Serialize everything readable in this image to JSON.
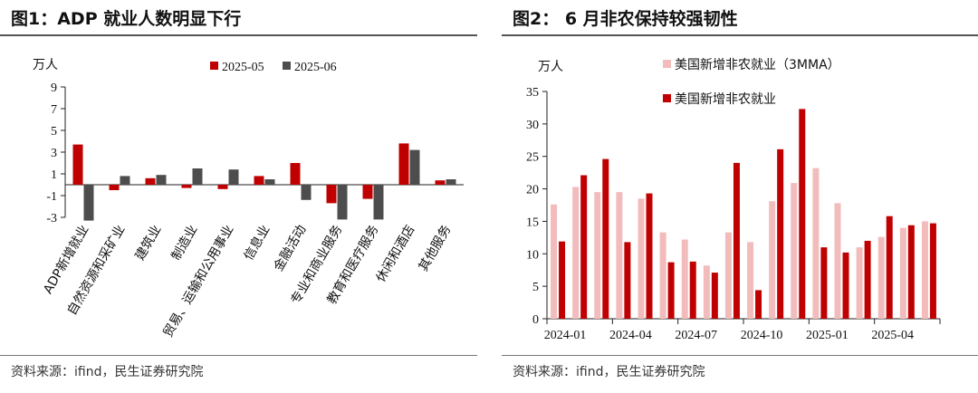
{
  "charts": [
    {
      "title": "图1：ADP 就业人数明显下行",
      "source": "资料来源：ifind，民生证券研究院",
      "unit": "万人"
    },
    {
      "title": "图2：  6 月非农保持较强韧性",
      "source": "资料来源：ifind，民生证券研究院",
      "unit": "万人"
    }
  ],
  "chart_data": [
    {
      "type": "bar",
      "title": "图1：ADP 就业人数明显下行",
      "ylabel": "万人",
      "ylim": [
        -3,
        9
      ],
      "yticks": [
        -3,
        -1,
        1,
        3,
        5,
        7,
        9
      ],
      "grid": false,
      "legend": "top",
      "categories": [
        "ADP新增就业",
        "自然资源和采矿业",
        "建筑业",
        "制造业",
        "贸易、运输和公用事业",
        "信息业",
        "金融活动",
        "专业和商业服务",
        "教育和医疗服务",
        "休闲和酒店",
        "其他服务"
      ],
      "series": [
        {
          "name": "2025-05",
          "color": "#c00000",
          "values": [
            3.7,
            -0.5,
            0.6,
            -0.3,
            -0.4,
            0.8,
            2.0,
            -1.7,
            -1.3,
            3.8,
            0.4
          ]
        },
        {
          "name": "2025-06",
          "color": "#4d4d4d",
          "values": [
            -3.3,
            0.8,
            0.9,
            1.5,
            1.4,
            0.5,
            -1.4,
            -3.2,
            -3.2,
            3.2,
            0.5
          ]
        }
      ]
    },
    {
      "type": "bar",
      "title": "图2：  6 月非农保持较强韧性",
      "ylabel": "万人",
      "ylim": [
        0,
        35
      ],
      "yticks": [
        0,
        5,
        10,
        15,
        20,
        25,
        30,
        35
      ],
      "grid": false,
      "legend": "top-left",
      "categories": [
        "2024-01",
        "2024-02",
        "2024-03",
        "2024-04",
        "2024-05",
        "2024-06",
        "2024-07",
        "2024-08",
        "2024-09",
        "2024-10",
        "2024-11",
        "2024-12",
        "2025-01",
        "2025-02",
        "2025-03",
        "2025-04",
        "2025-05",
        "2025-06"
      ],
      "xtick_labels": [
        "2024-01",
        "2024-04",
        "2024-07",
        "2024-10",
        "2025-01",
        "2025-04"
      ],
      "series": [
        {
          "name": "美国新增非农就业（3MMA）",
          "color": "#f2bcbc",
          "values": [
            17.6,
            20.3,
            19.5,
            19.5,
            18.5,
            13.3,
            12.2,
            8.2,
            13.3,
            11.8,
            18.1,
            20.9,
            23.2,
            17.8,
            11.0,
            12.6,
            14.0,
            15.0
          ]
        },
        {
          "name": "美国新增非农就业",
          "color": "#c00000",
          "values": [
            11.9,
            22.1,
            24.6,
            11.8,
            19.3,
            8.7,
            8.8,
            7.1,
            24.0,
            4.4,
            26.1,
            32.3,
            11.0,
            10.2,
            12.0,
            15.8,
            14.4,
            14.7
          ]
        }
      ]
    }
  ]
}
